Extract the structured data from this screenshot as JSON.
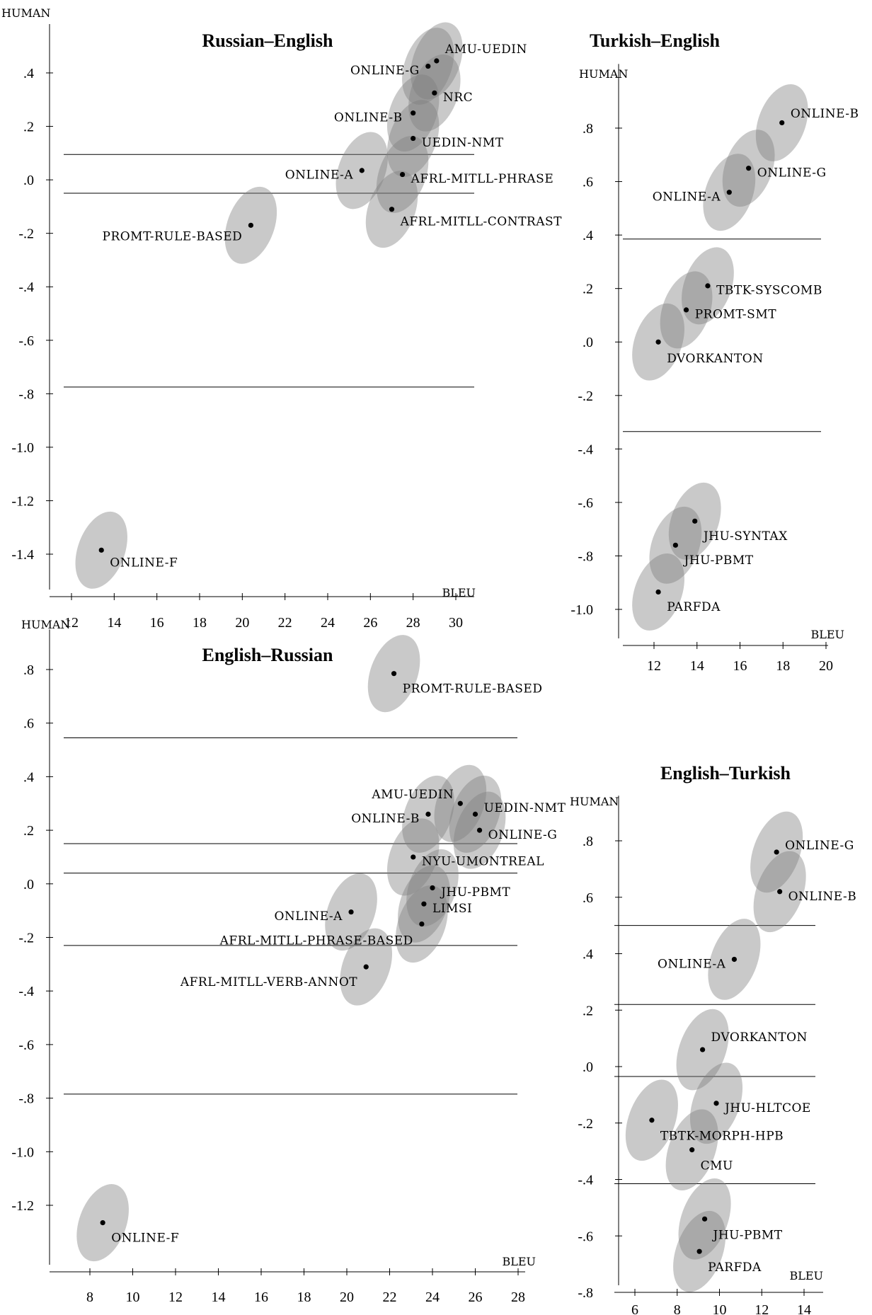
{
  "chart_data": [
    {
      "type": "scatter",
      "title": "Russian–English",
      "xlabel": "BLEU",
      "ylabel": "HUMAN",
      "xlim": [
        11.5,
        31
      ],
      "ylim": [
        -1.55,
        0.55
      ],
      "xticks": [
        12,
        14,
        16,
        18,
        20,
        22,
        24,
        26,
        28,
        30
      ],
      "xtick_labels": [
        "12",
        "14",
        "16",
        "18",
        "20",
        "22",
        "24",
        "26",
        "28",
        "30"
      ],
      "yticks": [
        0.4,
        0.2,
        0.0,
        -0.2,
        -0.4,
        -0.6,
        -0.8,
        -1.0,
        -1.2,
        -1.4
      ],
      "ytick_labels": [
        ".4",
        ".2",
        ".0",
        "-.2",
        "-.4",
        "-.6",
        "-.8",
        "-1.0",
        "-1.2",
        "-1.4"
      ],
      "cluster_lines": [
        0.095,
        -0.05,
        -0.775
      ],
      "points": [
        {
          "label": "AMU-UEDIN",
          "x": 29.1,
          "y": 0.445,
          "lx": 29.5,
          "ly": 0.49,
          "anchor": "start",
          "rx": 1.1,
          "ry": 0.15
        },
        {
          "label": "ONLINE-G",
          "x": 28.7,
          "y": 0.425,
          "lx": 28.3,
          "ly": 0.41,
          "anchor": "end",
          "rx": 1.1,
          "ry": 0.15
        },
        {
          "label": "NRC",
          "x": 29.0,
          "y": 0.325,
          "lx": 29.4,
          "ly": 0.31,
          "anchor": "start",
          "rx": 1.1,
          "ry": 0.15
        },
        {
          "label": "ONLINE-B",
          "x": 28.0,
          "y": 0.25,
          "lx": 27.5,
          "ly": 0.235,
          "anchor": "end",
          "rx": 1.1,
          "ry": 0.15
        },
        {
          "label": "UEDIN-NMT",
          "x": 28.0,
          "y": 0.155,
          "lx": 28.4,
          "ly": 0.14,
          "anchor": "start",
          "rx": 1.1,
          "ry": 0.15
        },
        {
          "label": "ONLINE-A",
          "x": 25.6,
          "y": 0.035,
          "lx": 25.2,
          "ly": 0.02,
          "anchor": "end",
          "rx": 1.1,
          "ry": 0.15
        },
        {
          "label": "AFRL-MITLL-PHRASE",
          "x": 27.5,
          "y": 0.02,
          "lx": 27.9,
          "ly": 0.005,
          "anchor": "start",
          "rx": 1.1,
          "ry": 0.15
        },
        {
          "label": "AFRL-MITLL-CONTRAST",
          "x": 27.0,
          "y": -0.11,
          "lx": 27.4,
          "ly": -0.155,
          "anchor": "start",
          "rx": 1.1,
          "ry": 0.15
        },
        {
          "label": "PROMT-RULE-BASED",
          "x": 20.4,
          "y": -0.17,
          "lx": 20.0,
          "ly": -0.21,
          "anchor": "end",
          "rx": 1.1,
          "ry": 0.15
        },
        {
          "label": "ONLINE-F",
          "x": 13.4,
          "y": -1.385,
          "lx": 13.8,
          "ly": -1.43,
          "anchor": "start",
          "rx": 1.1,
          "ry": 0.15
        }
      ]
    },
    {
      "type": "scatter",
      "title": "Turkish–English",
      "xlabel": "BLEU",
      "ylabel": "HUMAN",
      "xlim": [
        10.5,
        20
      ],
      "ylim": [
        -1.08,
        1.04
      ],
      "xticks": [
        12,
        14,
        16,
        18,
        20
      ],
      "xtick_labels": [
        "12",
        "14",
        "16",
        "18",
        "20"
      ],
      "yticks": [
        0.8,
        0.6,
        0.4,
        0.2,
        0.0,
        -0.2,
        -0.4,
        -0.6,
        -0.8,
        -1.0
      ],
      "ytick_labels": [
        ".8",
        ".6",
        ".4",
        ".2",
        ".0",
        "-.2",
        "-.4",
        "-.6",
        "-.8",
        "-1.0"
      ],
      "cluster_lines": [
        0.385,
        -0.335
      ],
      "points": [
        {
          "label": "ONLINE-B",
          "x": 17.95,
          "y": 0.82,
          "lx": 18.35,
          "ly": 0.855,
          "anchor": "start",
          "rx": 1.1,
          "ry": 0.15
        },
        {
          "label": "ONLINE-G",
          "x": 16.4,
          "y": 0.65,
          "lx": 16.8,
          "ly": 0.635,
          "anchor": "start",
          "rx": 1.1,
          "ry": 0.15
        },
        {
          "label": "ONLINE-A",
          "x": 15.5,
          "y": 0.56,
          "lx": 15.1,
          "ly": 0.545,
          "anchor": "end",
          "rx": 1.1,
          "ry": 0.15
        },
        {
          "label": "TBTK-SYSCOMB",
          "x": 14.5,
          "y": 0.21,
          "lx": 14.9,
          "ly": 0.195,
          "anchor": "start",
          "rx": 1.1,
          "ry": 0.15
        },
        {
          "label": "PROMT-SMT",
          "x": 13.5,
          "y": 0.12,
          "lx": 13.9,
          "ly": 0.105,
          "anchor": "start",
          "rx": 1.1,
          "ry": 0.15
        },
        {
          "label": "DVORKANTON",
          "x": 12.2,
          "y": 0.0,
          "lx": 12.6,
          "ly": -0.06,
          "anchor": "start",
          "rx": 1.1,
          "ry": 0.15
        },
        {
          "label": "JHU-SYNTAX",
          "x": 13.9,
          "y": -0.67,
          "lx": 14.3,
          "ly": -0.725,
          "anchor": "start",
          "rx": 1.1,
          "ry": 0.15
        },
        {
          "label": "JHU-PBMT",
          "x": 13.0,
          "y": -0.76,
          "lx": 13.4,
          "ly": -0.815,
          "anchor": "start",
          "rx": 1.1,
          "ry": 0.15
        },
        {
          "label": "PARFDA",
          "x": 12.2,
          "y": -0.935,
          "lx": 12.6,
          "ly": -0.99,
          "anchor": "start",
          "rx": 1.1,
          "ry": 0.15
        }
      ]
    },
    {
      "type": "scatter",
      "title": "English–Russian",
      "xlabel": "BLEU",
      "ylabel": "HUMAN",
      "xlim": [
        6.5,
        28.5
      ],
      "ylim": [
        -1.45,
        0.95
      ],
      "xticks": [
        8,
        10,
        12,
        14,
        16,
        18,
        20,
        22,
        24,
        26,
        28
      ],
      "xtick_labels": [
        "8",
        "10",
        "12",
        "14",
        "16",
        "18",
        "20",
        "22",
        "24",
        "26",
        "28"
      ],
      "yticks": [
        0.8,
        0.6,
        0.4,
        0.2,
        0.0,
        -0.2,
        -0.4,
        -0.6,
        -0.8,
        -1.0,
        -1.2
      ],
      "ytick_labels": [
        ".8",
        ".6",
        ".4",
        ".2",
        ".0",
        "-.2",
        "-.4",
        "-.6",
        "-.8",
        "-1.0",
        "-1.2"
      ],
      "cluster_lines": [
        0.545,
        0.15,
        0.04,
        -0.23,
        -0.785
      ],
      "points": [
        {
          "label": "PROMT-RULE-BASED",
          "x": 22.2,
          "y": 0.785,
          "lx": 22.6,
          "ly": 0.73,
          "anchor": "start",
          "rx": 1.1,
          "ry": 0.15
        },
        {
          "label": "AMU-UEDIN",
          "x": 25.3,
          "y": 0.3,
          "lx": 25.0,
          "ly": 0.335,
          "anchor": "end",
          "rx": 1.1,
          "ry": 0.15
        },
        {
          "label": "ONLINE-B",
          "x": 23.8,
          "y": 0.26,
          "lx": 23.4,
          "ly": 0.245,
          "anchor": "end",
          "rx": 1.1,
          "ry": 0.15
        },
        {
          "label": "UEDIN-NMT",
          "x": 26.0,
          "y": 0.26,
          "lx": 26.4,
          "ly": 0.285,
          "anchor": "start",
          "rx": 1.1,
          "ry": 0.15
        },
        {
          "label": "ONLINE-G",
          "x": 26.2,
          "y": 0.2,
          "lx": 26.6,
          "ly": 0.185,
          "anchor": "start",
          "rx": 1.1,
          "ry": 0.15
        },
        {
          "label": "NYU-UMONTREAL",
          "x": 23.1,
          "y": 0.1,
          "lx": 23.5,
          "ly": 0.085,
          "anchor": "start",
          "rx": 1.1,
          "ry": 0.15
        },
        {
          "label": "JHU-PBMT",
          "x": 24.0,
          "y": -0.015,
          "lx": 24.4,
          "ly": -0.03,
          "anchor": "start",
          "rx": 1.1,
          "ry": 0.15
        },
        {
          "label": "LIMSI",
          "x": 23.6,
          "y": -0.075,
          "lx": 24.0,
          "ly": -0.09,
          "anchor": "start",
          "rx": 1.1,
          "ry": 0.15
        },
        {
          "label": "ONLINE-A",
          "x": 20.2,
          "y": -0.105,
          "lx": 19.8,
          "ly": -0.12,
          "anchor": "end",
          "rx": 1.1,
          "ry": 0.15
        },
        {
          "label": "AFRL-MITLL-PHRASE-BASED",
          "x": 23.5,
          "y": -0.15,
          "lx": 23.1,
          "ly": -0.21,
          "anchor": "end",
          "rx": 1.1,
          "ry": 0.15
        },
        {
          "label": "AFRL-MITLL-VERB-ANNOT",
          "x": 20.9,
          "y": -0.31,
          "lx": 20.5,
          "ly": -0.365,
          "anchor": "end",
          "rx": 1.1,
          "ry": 0.15
        },
        {
          "label": "ONLINE-F",
          "x": 8.6,
          "y": -1.265,
          "lx": 9.0,
          "ly": -1.32,
          "anchor": "start",
          "rx": 1.1,
          "ry": 0.15
        }
      ]
    },
    {
      "type": "scatter",
      "title": "English–Turkish",
      "xlabel": "BLEU",
      "ylabel": "HUMAN",
      "xlim": [
        5,
        15
      ],
      "ylim": [
        -0.83,
        0.96
      ],
      "xticks": [
        6,
        8,
        10,
        12,
        14
      ],
      "xtick_labels": [
        "6",
        "8",
        "10",
        "12",
        "14"
      ],
      "yticks": [
        0.8,
        0.6,
        0.4,
        0.2,
        0.0,
        -0.2,
        -0.4,
        -0.6,
        -0.8
      ],
      "ytick_labels": [
        ".8",
        ".6",
        ".4",
        ".2",
        ".0",
        "-.2",
        "-.4",
        "-.6",
        "-.8"
      ],
      "cluster_lines": [
        0.5,
        0.22,
        -0.035,
        -0.415
      ],
      "points": [
        {
          "label": "ONLINE-G",
          "x": 12.7,
          "y": 0.76,
          "lx": 13.1,
          "ly": 0.785,
          "anchor": "start",
          "rx": 1.1,
          "ry": 0.15
        },
        {
          "label": "ONLINE-B",
          "x": 12.85,
          "y": 0.62,
          "lx": 13.25,
          "ly": 0.605,
          "anchor": "start",
          "rx": 1.1,
          "ry": 0.15
        },
        {
          "label": "ONLINE-A",
          "x": 10.7,
          "y": 0.38,
          "lx": 10.3,
          "ly": 0.365,
          "anchor": "end",
          "rx": 1.1,
          "ry": 0.15
        },
        {
          "label": "DVORKANTON",
          "x": 9.2,
          "y": 0.06,
          "lx": 9.6,
          "ly": 0.105,
          "anchor": "start",
          "rx": 1.1,
          "ry": 0.15
        },
        {
          "label": "JHU-HLTCOE",
          "x": 9.85,
          "y": -0.13,
          "lx": 10.25,
          "ly": -0.145,
          "anchor": "start",
          "rx": 1.1,
          "ry": 0.15
        },
        {
          "label": "TBTK-MORPH-HPB",
          "x": 6.8,
          "y": -0.19,
          "lx": 7.2,
          "ly": -0.245,
          "anchor": "start",
          "rx": 1.1,
          "ry": 0.15
        },
        {
          "label": "CMU",
          "x": 8.7,
          "y": -0.295,
          "lx": 9.1,
          "ly": -0.35,
          "anchor": "start",
          "rx": 1.1,
          "ry": 0.15
        },
        {
          "label": "JHU-PBMT",
          "x": 9.3,
          "y": -0.54,
          "lx": 9.7,
          "ly": -0.595,
          "anchor": "start",
          "rx": 1.1,
          "ry": 0.15
        },
        {
          "label": "PARFDA",
          "x": 9.05,
          "y": -0.655,
          "lx": 9.45,
          "ly": -0.71,
          "anchor": "start",
          "rx": 1.1,
          "ry": 0.15
        }
      ]
    }
  ]
}
